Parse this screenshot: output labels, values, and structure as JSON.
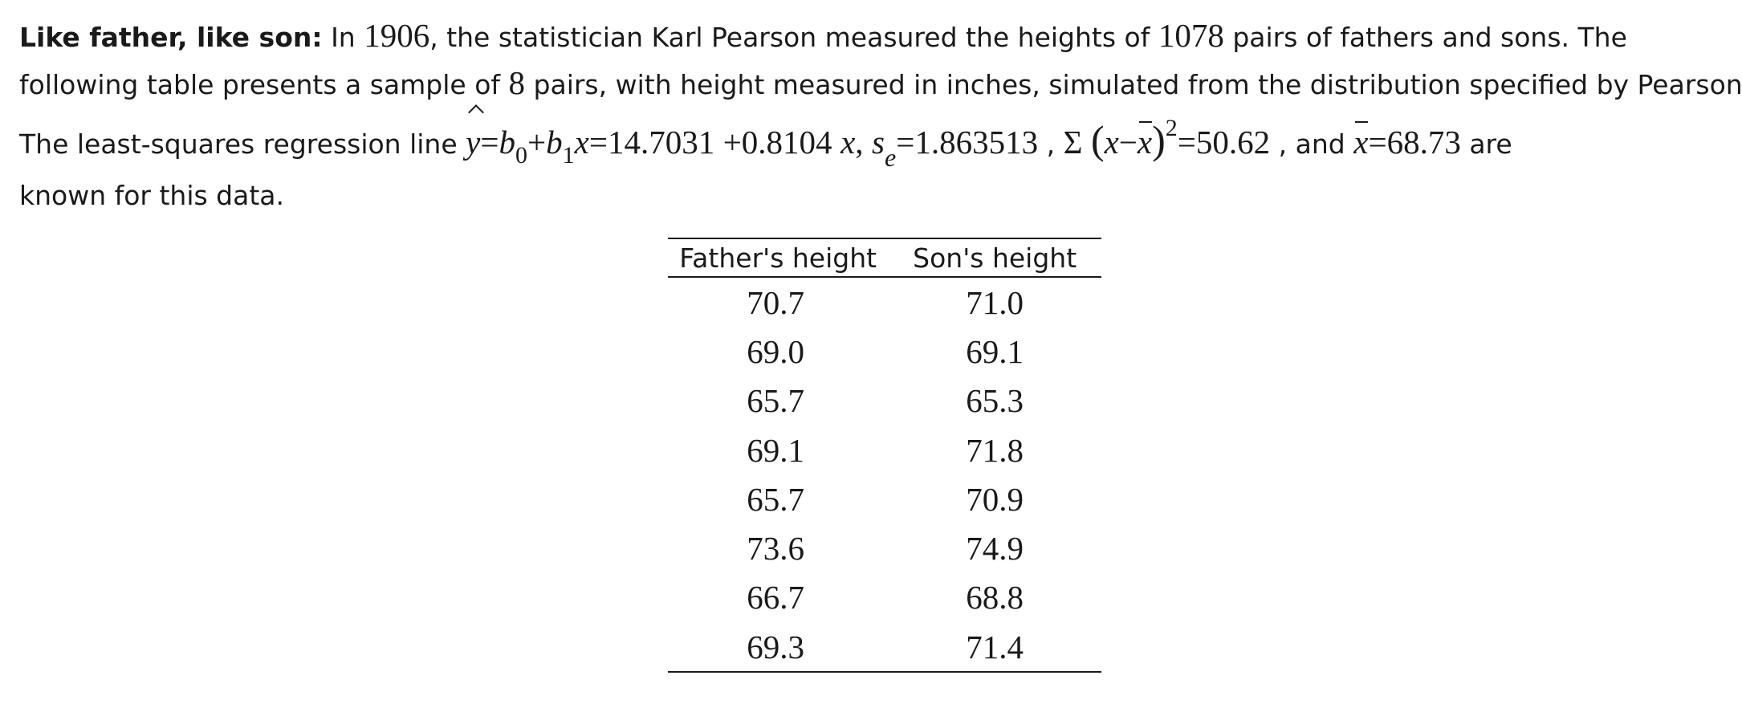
{
  "problem": {
    "title": "Like father, like son:",
    "line1": {
      "t1": "In",
      "year": "1906",
      "t2": ", the statistician Karl Pearson measured the heights of",
      "pairs_total": "1078",
      "t3": "pairs of fathers and sons. The"
    },
    "line2": {
      "t1": "following table presents a sample of",
      "sample_size": "8",
      "t2": "pairs, with height measured in inches, simulated from the distribution specified by Pearson."
    },
    "line3": {
      "t1": "The least-squares regression line",
      "y": "y",
      "eq": "=",
      "b": "b",
      "b0_sub": "0",
      "plus": "+",
      "b1_sub": "1",
      "x": "x",
      "intercept": "14.7031",
      "slope": "+0.8104",
      "x2": "x",
      "comma": ",",
      "s": "s",
      "s_sub": "e",
      "se": "1.863513",
      "t_comma": ",",
      "sigma": "Σ",
      "lparen": "(",
      "minus": "−",
      "rparen": ")",
      "power": "2",
      "sum_sq": "50.62",
      "t_and": ", and",
      "xbar": "68.73",
      "t_are": "are"
    },
    "line4": {
      "t1": "known for this data."
    }
  },
  "table": {
    "headers": [
      "Father's height",
      "Son's height"
    ],
    "rows": [
      [
        "70.7",
        "71.0"
      ],
      [
        "69.0",
        "69.1"
      ],
      [
        "65.7",
        "65.3"
      ],
      [
        "69.1",
        "71.8"
      ],
      [
        "65.7",
        "70.9"
      ],
      [
        "73.6",
        "74.9"
      ],
      [
        "66.7",
        "68.8"
      ],
      [
        "69.3",
        "71.4"
      ]
    ]
  }
}
